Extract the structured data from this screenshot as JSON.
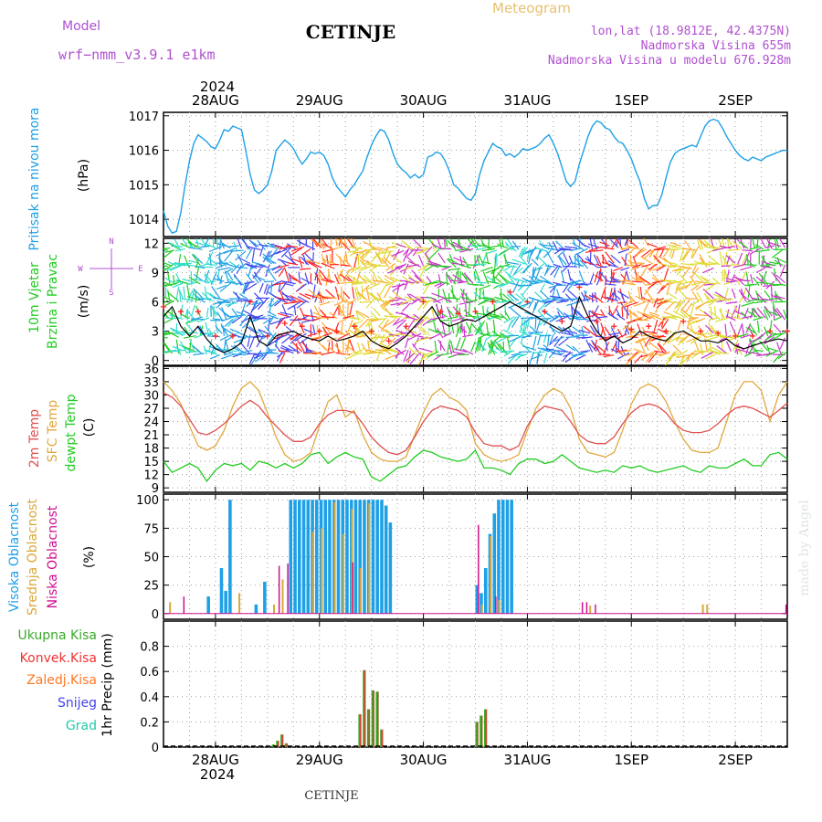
{
  "header": {
    "model_label": "Model",
    "model_name": "wrf−nmm_v3.9.1  e1km",
    "station": "CETINJE",
    "meteogram": "Meteogram",
    "lonlat": "lon,lat (18.9812E, 42.4375N)",
    "elevation": "Nadmorska Visina 655m",
    "model_elevation": "Nadmorska Visina u modelu 676.928m",
    "top_year": "2024",
    "bottom_year": "2024",
    "footer_station": "CETINJE",
    "credit": "made by Angel"
  },
  "colors": {
    "pressure": "#1ea0e6",
    "wind_label": "#22cc22",
    "wind_line": "#000000",
    "gust": "#ff2222",
    "temp2m": "#e05050",
    "sfc": "#e0a840",
    "dewpt": "#22cc22",
    "cloud_high": "#1ea0e6",
    "cloud_mid": "#d8a838",
    "cloud_low": "#d01090",
    "precip_total": "#3aaa2a",
    "precip_conv": "#ee3333",
    "precip_frozen": "#ff7722",
    "snow": "#4444ee",
    "hail": "#22ccaa",
    "label_purple": "#b050d0",
    "label_orange": "#e8c070"
  },
  "chart_data": [
    {
      "type": "line",
      "name": "pressure",
      "ylabel_main": "Pritisak na nivou mora",
      "ylabel_unit": "(hPa)",
      "ylim": [
        1013.5,
        1017.1
      ],
      "yticks": [
        1014,
        1015,
        1016,
        1017
      ],
      "xlim": [
        0,
        144
      ],
      "xticks": [
        {
          "t": 12,
          "label": "28AUG"
        },
        {
          "t": 36,
          "label": "29AUG"
        },
        {
          "t": 60,
          "label": "30AUG"
        },
        {
          "t": 84,
          "label": "31AUG"
        },
        {
          "t": 108,
          "label": "1SEP"
        },
        {
          "t": 132,
          "label": "2SEP"
        }
      ],
      "x": [
        0,
        1,
        2,
        3,
        4,
        5,
        6,
        7,
        8,
        9,
        10,
        11,
        12,
        13,
        14,
        15,
        16,
        17,
        18,
        19,
        20,
        21,
        22,
        23,
        24,
        25,
        26,
        27,
        28,
        29,
        30,
        31,
        32,
        33,
        34,
        35,
        36,
        37,
        38,
        39,
        40,
        41,
        42,
        43,
        44,
        45,
        46,
        47,
        48,
        49,
        50,
        51,
        52,
        53,
        54,
        55,
        56,
        57,
        58,
        59,
        60,
        61,
        62,
        63,
        64,
        65,
        66,
        67,
        68,
        69,
        70,
        71,
        72,
        73,
        74,
        75,
        76,
        77,
        78,
        79,
        80,
        81,
        82,
        83,
        84,
        85,
        86,
        87,
        88,
        89,
        90,
        91,
        92,
        93,
        94,
        95,
        96,
        97,
        98,
        99,
        100,
        101,
        102,
        103,
        104,
        105,
        106,
        107,
        108,
        109,
        110,
        111,
        112,
        113,
        114,
        115,
        116,
        117,
        118,
        119,
        120,
        121,
        122,
        123,
        124,
        125,
        126,
        127,
        128,
        129,
        130,
        131,
        132,
        133,
        134,
        135,
        136,
        137,
        138,
        139,
        140,
        141,
        142,
        143,
        144
      ],
      "y": [
        1014.25,
        1013.8,
        1013.6,
        1013.65,
        1014.2,
        1015.0,
        1015.7,
        1016.2,
        1016.45,
        1016.35,
        1016.25,
        1016.1,
        1016.05,
        1016.3,
        1016.6,
        1016.55,
        1016.7,
        1016.65,
        1016.6,
        1016.0,
        1015.3,
        1014.85,
        1014.75,
        1014.85,
        1015.0,
        1015.4,
        1016.0,
        1016.15,
        1016.3,
        1016.2,
        1016.05,
        1015.8,
        1015.6,
        1015.75,
        1015.95,
        1015.9,
        1015.95,
        1015.85,
        1015.6,
        1015.2,
        1014.95,
        1014.8,
        1014.65,
        1014.85,
        1015.0,
        1015.2,
        1015.4,
        1015.8,
        1016.15,
        1016.4,
        1016.6,
        1016.55,
        1016.3,
        1015.9,
        1015.6,
        1015.45,
        1015.35,
        1015.2,
        1015.3,
        1015.2,
        1015.3,
        1015.8,
        1015.85,
        1015.95,
        1015.9,
        1015.7,
        1015.4,
        1015.0,
        1014.9,
        1014.75,
        1014.6,
        1014.55,
        1014.75,
        1015.3,
        1015.7,
        1015.95,
        1016.2,
        1016.1,
        1016.05,
        1015.85,
        1015.9,
        1015.8,
        1015.9,
        1016.05,
        1016.0,
        1016.05,
        1016.1,
        1016.2,
        1016.35,
        1016.45,
        1016.2,
        1015.9,
        1015.5,
        1015.1,
        1014.95,
        1015.1,
        1015.6,
        1016.0,
        1016.4,
        1016.7,
        1016.85,
        1016.8,
        1016.65,
        1016.6,
        1016.4,
        1016.25,
        1016.2,
        1016.0,
        1015.75,
        1015.4,
        1015.1,
        1014.6,
        1014.3,
        1014.4,
        1014.4,
        1014.7,
        1015.2,
        1015.65,
        1015.9,
        1016.0,
        1016.05,
        1016.1,
        1016.15,
        1016.1,
        1016.4,
        1016.7,
        1016.85,
        1016.9,
        1016.85,
        1016.65,
        1016.4,
        1016.2,
        1016.0,
        1015.85,
        1015.75,
        1015.7,
        1015.8,
        1015.75,
        1015.7,
        1015.8,
        1015.85,
        1015.9,
        1015.95,
        1016.0,
        1016.0
      ]
    },
    {
      "type": "line",
      "name": "wind",
      "ylabel_main": "10m Vjetar",
      "ylabel_sub": "Brzina i Pravac",
      "ylabel_unit": "(m/s)",
      "compass": {
        "n": "N",
        "s": "S",
        "e": "E",
        "w": "W"
      },
      "ylim": [
        -0.5,
        12.5
      ],
      "yticks": [
        0,
        3,
        6,
        9,
        12
      ],
      "xlim": [
        0,
        144
      ],
      "x": [
        0,
        2,
        4,
        6,
        8,
        10,
        12,
        14,
        16,
        18,
        20,
        22,
        24,
        26,
        28,
        30,
        32,
        34,
        36,
        38,
        40,
        42,
        44,
        46,
        48,
        50,
        52,
        54,
        56,
        58,
        60,
        62,
        64,
        66,
        68,
        70,
        72,
        74,
        76,
        78,
        80,
        82,
        84,
        86,
        88,
        90,
        92,
        94,
        96,
        98,
        100,
        102,
        104,
        106,
        108,
        110,
        112,
        114,
        116,
        118,
        120,
        122,
        124,
        126,
        128,
        130,
        132,
        134,
        136,
        138,
        140,
        142,
        144
      ],
      "speed": [
        4.5,
        5.5,
        3.5,
        2.5,
        3.5,
        2.2,
        1.2,
        0.8,
        1.2,
        1.8,
        4.5,
        2.0,
        1.5,
        2.5,
        2.8,
        3.0,
        2.5,
        2.2,
        2.0,
        2.5,
        2.0,
        2.2,
        2.5,
        3.0,
        2.0,
        1.5,
        1.2,
        1.8,
        2.5,
        3.5,
        4.5,
        5.5,
        4.0,
        3.5,
        3.8,
        4.2,
        4.0,
        4.5,
        5.0,
        5.5,
        6.0,
        5.5,
        5.0,
        4.5,
        4.0,
        3.5,
        3.0,
        3.5,
        6.5,
        4.5,
        3.0,
        2.0,
        2.5,
        1.8,
        2.2,
        3.0,
        2.5,
        2.2,
        2.0,
        2.8,
        3.0,
        2.5,
        2.0,
        2.0,
        1.8,
        2.2,
        1.5,
        1.2,
        1.5,
        1.8,
        2.0,
        2.2,
        2.0
      ],
      "gust": [
        5.5,
        7.0,
        5.0,
        4.0,
        5.0,
        3.5,
        2.5,
        2.0,
        2.5,
        3.0,
        6.0,
        3.0,
        2.5,
        3.5,
        3.8,
        4.0,
        3.5,
        3.0,
        3.0,
        3.5,
        3.0,
        3.0,
        3.5,
        4.0,
        3.0,
        2.5,
        2.0,
        2.5,
        3.5,
        4.5,
        6.0,
        7.0,
        5.0,
        4.5,
        4.8,
        5.2,
        5.0,
        5.5,
        6.0,
        6.5,
        7.0,
        6.5,
        6.0,
        5.5,
        5.0,
        4.5,
        4.0,
        4.5,
        7.5,
        5.5,
        4.0,
        3.0,
        3.5,
        2.8,
        3.2,
        4.0,
        3.5,
        3.2,
        3.0,
        3.8,
        4.0,
        3.5,
        3.0,
        3.0,
        2.8,
        3.2,
        2.5,
        2.2,
        2.5,
        2.8,
        3.0,
        3.2,
        3.0
      ]
    },
    {
      "type": "line",
      "name": "temperature",
      "ylabel_main": "2m Temp",
      "ylabel_sfc": "SFC Temp",
      "ylabel_dew": "dewpt Temp",
      "ylabel_unit": "(C)",
      "ylim": [
        8,
        36.5
      ],
      "yticks": [
        9,
        12,
        15,
        18,
        21,
        24,
        27,
        30,
        33,
        36
      ],
      "xlim": [
        0,
        144
      ],
      "x": [
        0,
        2,
        4,
        6,
        8,
        10,
        12,
        14,
        16,
        18,
        20,
        22,
        24,
        26,
        28,
        30,
        32,
        34,
        36,
        38,
        40,
        42,
        44,
        46,
        48,
        50,
        52,
        54,
        56,
        58,
        60,
        62,
        64,
        66,
        68,
        70,
        72,
        74,
        76,
        78,
        80,
        82,
        84,
        86,
        88,
        90,
        92,
        94,
        96,
        98,
        100,
        102,
        104,
        106,
        108,
        110,
        112,
        114,
        116,
        118,
        120,
        122,
        124,
        126,
        128,
        130,
        132,
        134,
        136,
        138,
        140,
        142,
        144
      ],
      "t2m": [
        30.5,
        29.5,
        27.5,
        24.5,
        21.5,
        21.0,
        22.0,
        23.5,
        25.5,
        27.5,
        28.8,
        27.5,
        25.0,
        23.0,
        21.0,
        19.5,
        19.5,
        20.5,
        23.5,
        25.5,
        26.5,
        26.5,
        26.0,
        23.5,
        20.5,
        18.5,
        17.0,
        16.5,
        17.5,
        20.5,
        24.0,
        26.5,
        27.5,
        27.0,
        26.5,
        25.0,
        21.5,
        19.0,
        18.5,
        18.5,
        17.5,
        18.5,
        23.0,
        26.0,
        27.5,
        27.0,
        26.5,
        24.0,
        21.0,
        19.5,
        19.0,
        19.0,
        20.5,
        23.5,
        26.0,
        27.5,
        28.0,
        27.5,
        26.0,
        23.5,
        22.0,
        21.5,
        21.5,
        22.0,
        23.5,
        25.5,
        27.0,
        27.5,
        27.0,
        26.0,
        25.0,
        26.5,
        28.2
      ],
      "sfc": [
        33.0,
        31.0,
        28.0,
        23.0,
        18.5,
        17.5,
        18.5,
        22.0,
        27.5,
        31.5,
        33.0,
        31.0,
        26.0,
        20.5,
        16.5,
        15.0,
        15.5,
        17.0,
        23.0,
        28.5,
        30.0,
        25.0,
        26.5,
        21.0,
        17.0,
        15.5,
        15.0,
        15.0,
        16.0,
        21.0,
        26.0,
        30.0,
        31.5,
        29.5,
        28.5,
        26.5,
        19.0,
        16.5,
        15.5,
        15.0,
        15.5,
        16.5,
        22.0,
        27.0,
        30.0,
        31.5,
        30.5,
        27.0,
        20.0,
        17.0,
        16.5,
        16.0,
        17.0,
        22.0,
        28.0,
        31.5,
        32.5,
        31.5,
        28.5,
        24.0,
        20.0,
        17.5,
        17.0,
        17.0,
        18.0,
        24.0,
        30.0,
        33.0,
        33.0,
        31.0,
        24.0,
        30.0,
        33.0
      ],
      "dew": [
        15.0,
        12.5,
        13.5,
        14.5,
        13.5,
        10.5,
        13.0,
        14.5,
        14.0,
        14.5,
        13.0,
        15.0,
        14.5,
        13.5,
        14.5,
        13.5,
        14.5,
        16.5,
        17.0,
        14.5,
        16.0,
        17.0,
        16.0,
        15.5,
        11.5,
        10.5,
        12.0,
        13.5,
        14.0,
        16.0,
        17.5,
        17.0,
        16.0,
        15.5,
        15.0,
        15.5,
        17.5,
        13.5,
        13.5,
        13.0,
        12.0,
        14.5,
        15.5,
        15.5,
        14.5,
        15.0,
        16.5,
        15.0,
        13.5,
        13.0,
        12.5,
        13.0,
        12.5,
        14.0,
        13.5,
        14.0,
        13.0,
        12.5,
        13.0,
        13.5,
        14.0,
        13.0,
        12.5,
        14.0,
        13.5,
        13.5,
        14.5,
        15.5,
        14.0,
        14.0,
        16.5,
        17.0,
        15.5
      ]
    },
    {
      "type": "bar",
      "name": "clouds",
      "ylabel_high": "Visoka Oblacnost",
      "ylabel_mid": "Srednja Oblacnost",
      "ylabel_low": "Niska Oblacnost",
      "ylabel_unit": "(%)",
      "ylim": [
        -5,
        105
      ],
      "yticks": [
        0,
        25,
        50,
        75,
        100
      ],
      "xlim": [
        0,
        144
      ],
      "high": [
        {
          "t": 10,
          "v": 15
        },
        {
          "t": 13,
          "v": 40
        },
        {
          "t": 14,
          "v": 20
        },
        {
          "t": 15,
          "v": 100
        },
        {
          "t": 21,
          "v": 8
        },
        {
          "t": 23,
          "v": 28
        },
        {
          "t": 29,
          "v": 100
        },
        {
          "t": 30,
          "v": 100
        },
        {
          "t": 31,
          "v": 100
        },
        {
          "t": 32,
          "v": 100
        },
        {
          "t": 33,
          "v": 100
        },
        {
          "t": 34,
          "v": 100
        },
        {
          "t": 35,
          "v": 100
        },
        {
          "t": 36,
          "v": 100
        },
        {
          "t": 37,
          "v": 100
        },
        {
          "t": 38,
          "v": 100
        },
        {
          "t": 39,
          "v": 100
        },
        {
          "t": 40,
          "v": 100
        },
        {
          "t": 41,
          "v": 100
        },
        {
          "t": 42,
          "v": 100
        },
        {
          "t": 43,
          "v": 100
        },
        {
          "t": 44,
          "v": 100
        },
        {
          "t": 45,
          "v": 100
        },
        {
          "t": 46,
          "v": 100
        },
        {
          "t": 47,
          "v": 100
        },
        {
          "t": 48,
          "v": 100
        },
        {
          "t": 49,
          "v": 100
        },
        {
          "t": 50,
          "v": 100
        },
        {
          "t": 51,
          "v": 95
        },
        {
          "t": 52,
          "v": 80
        },
        {
          "t": 72,
          "v": 25
        },
        {
          "t": 73,
          "v": 18
        },
        {
          "t": 74,
          "v": 40
        },
        {
          "t": 75,
          "v": 70
        },
        {
          "t": 76,
          "v": 88
        },
        {
          "t": 77,
          "v": 100
        },
        {
          "t": 78,
          "v": 100
        },
        {
          "t": 79,
          "v": 100
        },
        {
          "t": 80,
          "v": 100
        }
      ],
      "mid": [
        {
          "t": 1,
          "v": 10
        },
        {
          "t": 17,
          "v": 18
        },
        {
          "t": 25,
          "v": 8
        },
        {
          "t": 27,
          "v": 30
        },
        {
          "t": 34,
          "v": 72
        },
        {
          "t": 36,
          "v": 75
        },
        {
          "t": 39,
          "v": 98
        },
        {
          "t": 41,
          "v": 70
        },
        {
          "t": 43,
          "v": 92
        },
        {
          "t": 45,
          "v": 40
        },
        {
          "t": 47,
          "v": 97
        },
        {
          "t": 73,
          "v": 8
        },
        {
          "t": 75,
          "v": 68
        },
        {
          "t": 77,
          "v": 12
        },
        {
          "t": 98,
          "v": 7
        },
        {
          "t": 124,
          "v": 8
        },
        {
          "t": 125,
          "v": 8
        }
      ],
      "low": [
        {
          "t": 4,
          "v": 15
        },
        {
          "t": 26,
          "v": 42
        },
        {
          "t": 28,
          "v": 44
        },
        {
          "t": 43,
          "v": 45
        },
        {
          "t": 72,
          "v": 78
        },
        {
          "t": 76,
          "v": 15
        },
        {
          "t": 96,
          "v": 10
        },
        {
          "t": 97,
          "v": 10
        },
        {
          "t": 99,
          "v": 8
        },
        {
          "t": 143,
          "v": 8
        }
      ]
    },
    {
      "type": "bar",
      "name": "precip",
      "labels": [
        "Ukupna Kisa",
        "Konvek.Kisa",
        "Zaledj.Kisa",
        "Snijeg",
        "Grad"
      ],
      "ylabel_unit": "1hr Precip (mm)",
      "ylim": [
        0,
        1.0
      ],
      "yticks": [
        0,
        0.2,
        0.4,
        0.6,
        0.8
      ],
      "yticklabels": [
        "0",
        "0.2",
        "0.4",
        "0.6",
        "0.8"
      ],
      "xlim": [
        0,
        144
      ],
      "xticks": [
        {
          "t": 12,
          "label": "28AUG"
        },
        {
          "t": 36,
          "label": "29AUG"
        },
        {
          "t": 60,
          "label": "30AUG"
        },
        {
          "t": 84,
          "label": "31AUG"
        },
        {
          "t": 108,
          "label": "1SEP"
        },
        {
          "t": 132,
          "label": "2SEP"
        }
      ],
      "total": [
        {
          "t": 25,
          "v": 0.02
        },
        {
          "t": 26,
          "v": 0.05
        },
        {
          "t": 27,
          "v": 0.1
        },
        {
          "t": 28,
          "v": 0.03
        },
        {
          "t": 45,
          "v": 0.26
        },
        {
          "t": 46,
          "v": 0.61
        },
        {
          "t": 47,
          "v": 0.3
        },
        {
          "t": 48,
          "v": 0.45
        },
        {
          "t": 49,
          "v": 0.44
        },
        {
          "t": 50,
          "v": 0.14
        },
        {
          "t": 72,
          "v": 0.2
        },
        {
          "t": 73,
          "v": 0.25
        },
        {
          "t": 74,
          "v": 0.3
        }
      ]
    }
  ]
}
